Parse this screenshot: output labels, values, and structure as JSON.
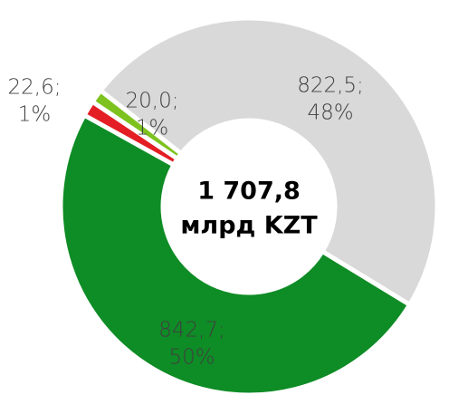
{
  "chart_data": {
    "type": "donut",
    "categories": [
      null,
      null,
      null,
      null
    ],
    "values": [
      822.5,
      842.7,
      22.6,
      20.0
    ],
    "value_labels": [
      "822,5;",
      "842,7;",
      "22,6;",
      "20,0;"
    ],
    "percent_labels": [
      "48%",
      "50%",
      "1%",
      "1%"
    ],
    "colors": [
      "#d9d9d9",
      "#0e8c25",
      "#e31e24",
      "#7dc21f"
    ],
    "center_label": [
      "1 707,8",
      "млрд KZT"
    ]
  }
}
